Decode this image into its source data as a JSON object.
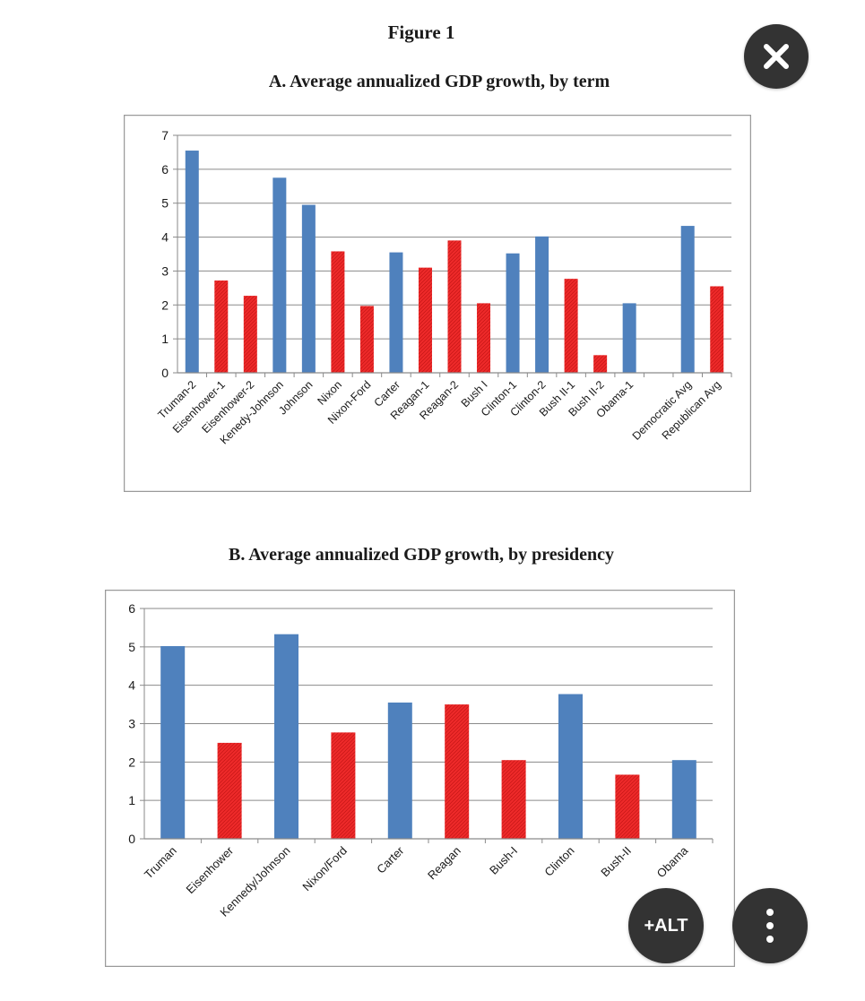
{
  "figure_title": "Figure 1",
  "colors": {
    "democrat": "#4f81bd",
    "republican": "#ee2a2a",
    "republican_dark": "#c41414",
    "grid": "#8a8a8a",
    "frame": "#9a9a9a",
    "text": "#1a1a1a"
  },
  "controls": {
    "close_icon": "close-icon",
    "alt_label": "+ALT",
    "more_icon": "more-vertical-icon"
  },
  "chart_data": [
    {
      "type": "bar",
      "title": "A. Average annualized GDP growth, by term",
      "xlabel": "",
      "ylabel": "",
      "ylim": [
        0,
        7
      ],
      "yticks": [
        0,
        1,
        2,
        3,
        4,
        5,
        6,
        7
      ],
      "grid": true,
      "categories": [
        "Truman-2",
        "Eisenhower-1",
        "Eisenhower-2",
        "Kenedy-Johnson",
        "Johnson",
        "Nixon",
        "Nixon-Ford",
        "Carter",
        "Reagan-1",
        "Reagan-2",
        "Bush I",
        "Clinton-1",
        "Clinton-2",
        "Bush II-1",
        "Bush II-2",
        "Obama-1",
        "",
        "Democratic Avg",
        "Republican Avg"
      ],
      "values": [
        6.55,
        2.72,
        2.27,
        5.75,
        4.95,
        3.58,
        1.97,
        3.55,
        3.1,
        3.9,
        2.05,
        3.52,
        4.02,
        2.77,
        0.52,
        2.05,
        null,
        4.33,
        2.55
      ],
      "party": [
        "D",
        "R",
        "R",
        "D",
        "D",
        "R",
        "R",
        "D",
        "R",
        "R",
        "R",
        "D",
        "D",
        "R",
        "R",
        "D",
        "",
        "D",
        "R"
      ]
    },
    {
      "type": "bar",
      "title": "B. Average annualized GDP growth, by presidency",
      "xlabel": "",
      "ylabel": "",
      "ylim": [
        0,
        6
      ],
      "yticks": [
        0,
        1,
        2,
        3,
        4,
        5,
        6
      ],
      "grid": true,
      "categories": [
        "Truman",
        "Eisenhower",
        "Kennedy/Johnson",
        "Nixon/Ford",
        "Carter",
        "Reagan",
        "Bush-I",
        "Clinton",
        "Bush-II",
        "Obama"
      ],
      "values": [
        5.02,
        2.5,
        5.33,
        2.77,
        3.55,
        3.5,
        2.05,
        3.77,
        1.67,
        2.05
      ],
      "party": [
        "D",
        "R",
        "D",
        "R",
        "D",
        "R",
        "R",
        "D",
        "R",
        "D"
      ]
    }
  ]
}
